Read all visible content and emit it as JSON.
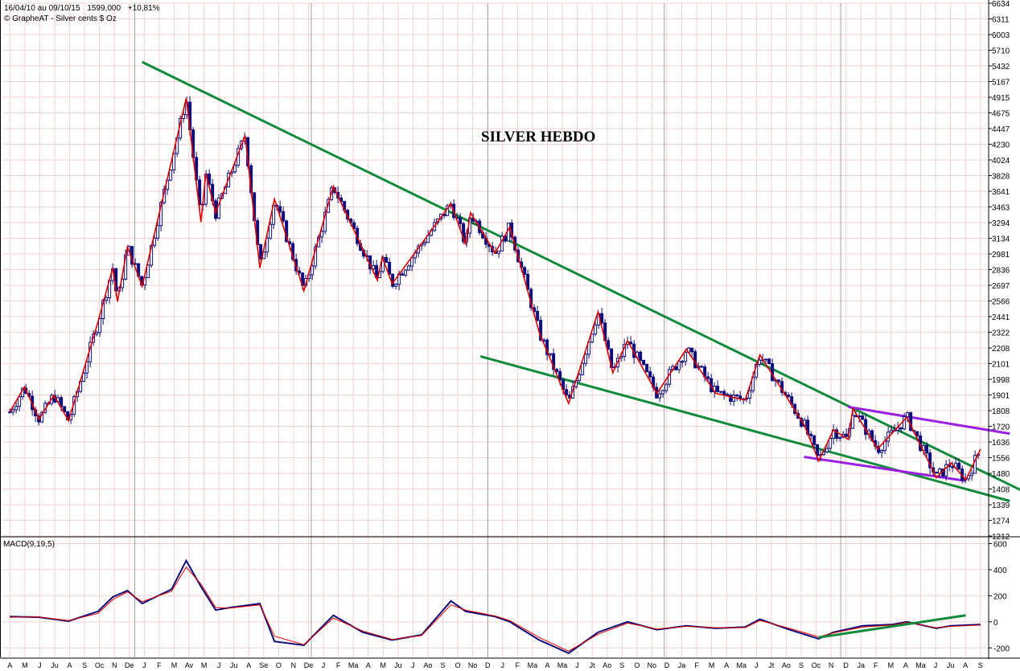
{
  "header": {
    "range": "16/04/10 au 09/10/15",
    "last": "1599,000",
    "change": "+10,81%",
    "source": "© GrapheAT - Silver cents $ Oz"
  },
  "title": "SILVER HEBDO",
  "macd_label": "MACD(9,19,5)",
  "colors": {
    "grid": "#F2D2D2",
    "gridMajor": "#A0A0A0",
    "candle": "#0D0D7A",
    "zigzag": "#E00000",
    "trend": "#128A3C",
    "wedge": "#9B1FE0",
    "macd": "#0D0D7A",
    "signal": "#E00000",
    "text": "#000000"
  },
  "chart_data": [
    {
      "type": "candlestick",
      "title": "SILVER HEBDO",
      "y_scale": "log",
      "ylim": [
        1212,
        6634
      ],
      "y_ticks": [
        1212,
        1274,
        1339,
        1408,
        1480,
        1556,
        1636,
        1720,
        1808,
        1901,
        1998,
        2101,
        2208,
        2322,
        2441,
        2566,
        2697,
        2836,
        2981,
        3134,
        3294,
        3463,
        3641,
        3828,
        4024,
        4230,
        4447,
        4675,
        4915,
        5167,
        5432,
        5710,
        6003,
        6311,
        6634
      ],
      "x_labels": [
        "A",
        "M",
        "J",
        "Ju",
        "A",
        "S",
        "Oc",
        "N",
        "De",
        "J",
        "F",
        "M",
        "Av",
        "M",
        "J",
        "Ju",
        "A",
        "Se",
        "O",
        "N",
        "De",
        "J",
        "F",
        "Ma",
        "A",
        "M",
        "Ju",
        "J",
        "Ao",
        "S",
        "O",
        "No",
        "D",
        "J",
        "F",
        "Ma",
        "A",
        "Ma",
        "J",
        "Jt",
        "Ao",
        "S",
        "O",
        "No",
        "D",
        "Ja",
        "F",
        "M",
        "A",
        "Ma",
        "J",
        "Jt",
        "Ao",
        "S",
        "Oc",
        "N",
        "D",
        "Ja",
        "F",
        "M",
        "A",
        "Ma",
        "J",
        "Ju",
        "A",
        "S"
      ],
      "year_separators": [
        "2011-01",
        "2012-01",
        "2013-01",
        "2014-01",
        "2015-01"
      ],
      "zigzag": [
        {
          "date": "2010-04",
          "value": 1800
        },
        {
          "date": "2010-05",
          "value": 1950
        },
        {
          "date": "2010-06",
          "value": 1760
        },
        {
          "date": "2010-07",
          "value": 1900
        },
        {
          "date": "2010-08",
          "value": 1750
        },
        {
          "date": "2010-10",
          "value": 2400
        },
        {
          "date": "2010-11",
          "value": 2850
        },
        {
          "date": "2010-11",
          "value": 2560
        },
        {
          "date": "2010-12",
          "value": 3050
        },
        {
          "date": "2011-01",
          "value": 2690
        },
        {
          "date": "2011-04",
          "value": 4900
        },
        {
          "date": "2011-05",
          "value": 3300
        },
        {
          "date": "2011-05",
          "value": 3850
        },
        {
          "date": "2011-06",
          "value": 3400
        },
        {
          "date": "2011-08",
          "value": 4350
        },
        {
          "date": "2011-09",
          "value": 2850
        },
        {
          "date": "2011-10",
          "value": 3550
        },
        {
          "date": "2011-12",
          "value": 2650
        },
        {
          "date": "2012-02",
          "value": 3700
        },
        {
          "date": "2012-05",
          "value": 2740
        },
        {
          "date": "2012-05",
          "value": 2950
        },
        {
          "date": "2012-06",
          "value": 2710
        },
        {
          "date": "2012-10",
          "value": 3500
        },
        {
          "date": "2012-11",
          "value": 3070
        },
        {
          "date": "2012-11",
          "value": 3400
        },
        {
          "date": "2013-01",
          "value": 2990
        },
        {
          "date": "2013-02",
          "value": 3250
        },
        {
          "date": "2013-04",
          "value": 2320
        },
        {
          "date": "2013-06",
          "value": 1850
        },
        {
          "date": "2013-08",
          "value": 2480
        },
        {
          "date": "2013-09",
          "value": 2040
        },
        {
          "date": "2013-10",
          "value": 2260
        },
        {
          "date": "2013-12",
          "value": 1910
        },
        {
          "date": "2014-02",
          "value": 2200
        },
        {
          "date": "2014-04",
          "value": 1910
        },
        {
          "date": "2014-06",
          "value": 1870
        },
        {
          "date": "2014-07",
          "value": 2160
        },
        {
          "date": "2014-10",
          "value": 1730
        },
        {
          "date": "2014-11",
          "value": 1540
        },
        {
          "date": "2014-12",
          "value": 1700
        },
        {
          "date": "2015-01",
          "value": 1650
        },
        {
          "date": "2015-01",
          "value": 1820
        },
        {
          "date": "2015-03",
          "value": 1600
        },
        {
          "date": "2015-05",
          "value": 1770
        },
        {
          "date": "2015-07",
          "value": 1460
        },
        {
          "date": "2015-08",
          "value": 1530
        },
        {
          "date": "2015-09",
          "value": 1450
        },
        {
          "date": "2015-10",
          "value": 1599
        }
      ],
      "trendlines": [
        {
          "color": "trend",
          "points": [
            {
              "date": "2011-01",
              "value": 5500
            },
            {
              "date": "2016-01",
              "value": 1395
            }
          ]
        },
        {
          "color": "trend",
          "points": [
            {
              "date": "2012-12",
              "value": 2150
            },
            {
              "date": "2015-12",
              "value": 1355
            }
          ]
        },
        {
          "color": "wedge",
          "points": [
            {
              "date": "2015-01",
              "value": 1830
            },
            {
              "date": "2015-12",
              "value": 1680
            }
          ]
        },
        {
          "color": "wedge",
          "points": [
            {
              "date": "2014-10",
              "value": 1560
            },
            {
              "date": "2015-09",
              "value": 1445
            }
          ]
        }
      ]
    },
    {
      "type": "line",
      "title": "MACD(9,19,5)",
      "ylim": [
        -260,
        640
      ],
      "y_ticks": [
        600,
        400,
        200,
        0,
        -200
      ],
      "series": [
        {
          "color": "macd",
          "points": [
            {
              "date": "2010-04",
              "value": 40
            },
            {
              "date": "2010-06",
              "value": 35
            },
            {
              "date": "2010-08",
              "value": 5
            },
            {
              "date": "2010-10",
              "value": 80
            },
            {
              "date": "2010-11",
              "value": 190
            },
            {
              "date": "2010-12",
              "value": 240
            },
            {
              "date": "2011-01",
              "value": 140
            },
            {
              "date": "2011-03",
              "value": 250
            },
            {
              "date": "2011-04",
              "value": 470
            },
            {
              "date": "2011-05",
              "value": 270
            },
            {
              "date": "2011-06",
              "value": 90
            },
            {
              "date": "2011-07",
              "value": 110
            },
            {
              "date": "2011-09",
              "value": 140
            },
            {
              "date": "2011-10",
              "value": -150
            },
            {
              "date": "2011-12",
              "value": -180
            },
            {
              "date": "2012-02",
              "value": 50
            },
            {
              "date": "2012-04",
              "value": -80
            },
            {
              "date": "2012-06",
              "value": -140
            },
            {
              "date": "2012-08",
              "value": -100
            },
            {
              "date": "2012-10",
              "value": 160
            },
            {
              "date": "2012-11",
              "value": 80
            },
            {
              "date": "2013-01",
              "value": 40
            },
            {
              "date": "2013-02",
              "value": 0
            },
            {
              "date": "2013-04",
              "value": -140
            },
            {
              "date": "2013-06",
              "value": -240
            },
            {
              "date": "2013-08",
              "value": -80
            },
            {
              "date": "2013-10",
              "value": 0
            },
            {
              "date": "2013-12",
              "value": -60
            },
            {
              "date": "2014-02",
              "value": -30
            },
            {
              "date": "2014-04",
              "value": -50
            },
            {
              "date": "2014-06",
              "value": -40
            },
            {
              "date": "2014-07",
              "value": 20
            },
            {
              "date": "2014-09",
              "value": -60
            },
            {
              "date": "2014-11",
              "value": -130
            },
            {
              "date": "2014-12",
              "value": -80
            },
            {
              "date": "2015-02",
              "value": -30
            },
            {
              "date": "2015-04",
              "value": -20
            },
            {
              "date": "2015-05",
              "value": 0
            },
            {
              "date": "2015-07",
              "value": -50
            },
            {
              "date": "2015-08",
              "value": -30
            },
            {
              "date": "2015-10",
              "value": -20
            }
          ]
        },
        {
          "color": "signal",
          "points": [
            {
              "date": "2010-04",
              "value": 35
            },
            {
              "date": "2010-06",
              "value": 38
            },
            {
              "date": "2010-08",
              "value": 10
            },
            {
              "date": "2010-10",
              "value": 65
            },
            {
              "date": "2010-11",
              "value": 170
            },
            {
              "date": "2010-12",
              "value": 230
            },
            {
              "date": "2011-01",
              "value": 155
            },
            {
              "date": "2011-03",
              "value": 235
            },
            {
              "date": "2011-04",
              "value": 420
            },
            {
              "date": "2011-05",
              "value": 290
            },
            {
              "date": "2011-06",
              "value": 110
            },
            {
              "date": "2011-07",
              "value": 105
            },
            {
              "date": "2011-09",
              "value": 130
            },
            {
              "date": "2011-10",
              "value": -110
            },
            {
              "date": "2011-12",
              "value": -175
            },
            {
              "date": "2012-02",
              "value": 30
            },
            {
              "date": "2012-04",
              "value": -70
            },
            {
              "date": "2012-06",
              "value": -135
            },
            {
              "date": "2012-08",
              "value": -105
            },
            {
              "date": "2012-10",
              "value": 130
            },
            {
              "date": "2012-11",
              "value": 90
            },
            {
              "date": "2013-01",
              "value": 45
            },
            {
              "date": "2013-02",
              "value": 10
            },
            {
              "date": "2013-04",
              "value": -120
            },
            {
              "date": "2013-06",
              "value": -225
            },
            {
              "date": "2013-08",
              "value": -95
            },
            {
              "date": "2013-10",
              "value": -10
            },
            {
              "date": "2013-12",
              "value": -55
            },
            {
              "date": "2014-02",
              "value": -35
            },
            {
              "date": "2014-04",
              "value": -45
            },
            {
              "date": "2014-06",
              "value": -45
            },
            {
              "date": "2014-07",
              "value": 10
            },
            {
              "date": "2014-09",
              "value": -50
            },
            {
              "date": "2014-11",
              "value": -115
            },
            {
              "date": "2014-12",
              "value": -85
            },
            {
              "date": "2015-02",
              "value": -40
            },
            {
              "date": "2015-04",
              "value": -25
            },
            {
              "date": "2015-05",
              "value": -5
            },
            {
              "date": "2015-07",
              "value": -45
            },
            {
              "date": "2015-08",
              "value": -35
            },
            {
              "date": "2015-10",
              "value": -25
            }
          ]
        }
      ],
      "trendlines": [
        {
          "color": "trend",
          "points": [
            {
              "date": "2014-11",
              "value": -120
            },
            {
              "date": "2015-09",
              "value": 50
            }
          ]
        }
      ]
    }
  ]
}
